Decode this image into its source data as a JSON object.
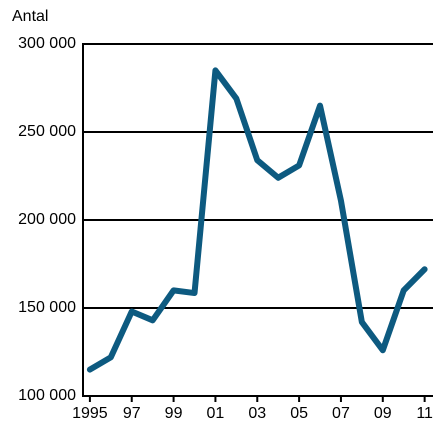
{
  "chart_data": {
    "type": "line",
    "y_label": "Antal",
    "x": [
      1995,
      1996,
      1997,
      1998,
      1999,
      2000,
      2001,
      2002,
      2003,
      2004,
      2005,
      2006,
      2007,
      2008,
      2009,
      2010,
      2011
    ],
    "series": [
      {
        "color": "#0d5a80",
        "values": [
          115000,
          122000,
          148000,
          143000,
          160000,
          158500,
          285000,
          269000,
          234000,
          224000,
          231000,
          265000,
          211000,
          142000,
          126000,
          160000,
          172000
        ]
      }
    ],
    "xlim": [
      1994.67,
      2011.4
    ],
    "xticks": [
      {
        "value": 1995,
        "label": "1995"
      },
      {
        "value": 1997,
        "label": "97"
      },
      {
        "value": 1999,
        "label": "99"
      },
      {
        "value": 2001,
        "label": "01"
      },
      {
        "value": 2003,
        "label": "03"
      },
      {
        "value": 2005,
        "label": "05"
      },
      {
        "value": 2007,
        "label": "07"
      },
      {
        "value": 2009,
        "label": "09"
      },
      {
        "value": 2011,
        "label": "11"
      }
    ],
    "ylim": [
      100000,
      300000
    ],
    "yticks": [
      {
        "value": 100000,
        "label": "100 000"
      },
      {
        "value": 150000,
        "label": "150 000"
      },
      {
        "value": 200000,
        "label": "200 000"
      },
      {
        "value": 250000,
        "label": "250 000"
      },
      {
        "value": 300000,
        "label": "300 000"
      }
    ],
    "grid": true
  }
}
